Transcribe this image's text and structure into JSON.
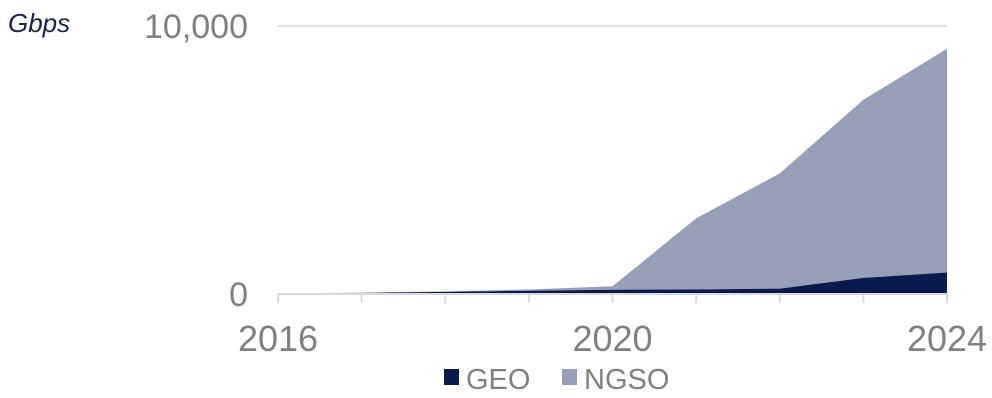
{
  "chart_data": {
    "type": "area",
    "stacked": true,
    "unit_label": "Gbps",
    "x": [
      2016,
      2017,
      2018,
      2019,
      2020,
      2021,
      2022,
      2023,
      2024
    ],
    "series": [
      {
        "name": "GEO",
        "values": [
          20,
          40,
          80,
          120,
          160,
          170,
          200,
          600,
          800
        ],
        "color": "#0b1a4c"
      },
      {
        "name": "NGSO",
        "values": [
          5,
          10,
          20,
          50,
          130,
          2650,
          4300,
          6650,
          8350
        ],
        "color": "#979fb8"
      }
    ],
    "y_ticks": [
      "0",
      "10,000"
    ],
    "y_tick_values": [
      0,
      10000
    ],
    "x_ticks": [
      "2016",
      "2020",
      "2024"
    ],
    "x_tick_values": [
      2016,
      2020,
      2024
    ],
    "ylim": [
      0,
      10000
    ],
    "xlim": [
      2016,
      2024
    ],
    "grid": "horizontal",
    "legend_position": "bottom-center",
    "axis_color": "#d9d9d9"
  }
}
